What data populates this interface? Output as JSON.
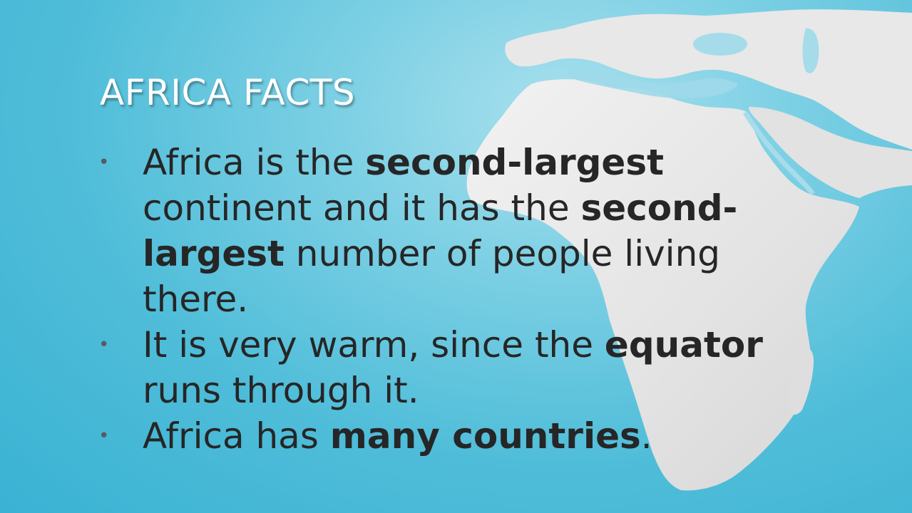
{
  "slide": {
    "title": "AFRICA FACTS",
    "bullets": [
      {
        "marker": "•",
        "segments": [
          {
            "text": "Africa is the ",
            "bold": false
          },
          {
            "text": "second-largest",
            "bold": true
          },
          {
            "text": " continent and it has the ",
            "bold": false
          },
          {
            "text": "second-largest",
            "bold": true
          },
          {
            "text": " number of people living there.",
            "bold": false
          }
        ]
      },
      {
        "marker": "•",
        "segments": [
          {
            "text": "It is very warm, since the ",
            "bold": false
          },
          {
            "text": "equator",
            "bold": true
          },
          {
            "text": " runs through it.",
            "bold": false
          }
        ]
      },
      {
        "marker": "•",
        "segments": [
          {
            "text": "Africa has ",
            "bold": false
          },
          {
            "text": "many countries",
            "bold": true
          },
          {
            "text": ".",
            "bold": false
          }
        ]
      }
    ]
  },
  "background": {
    "image": "world-map-africa",
    "colors": {
      "sea": "#4fbdd9",
      "land": "#e6e6e6",
      "title_text": "#ffffff",
      "body_text": "#262626"
    }
  }
}
